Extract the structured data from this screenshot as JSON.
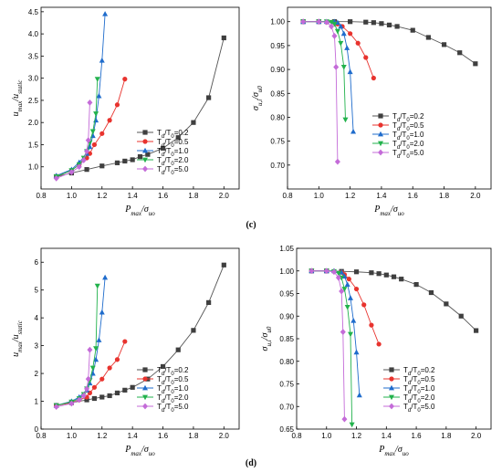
{
  "panel_labels": [
    {
      "text": "(c)",
      "x": 275,
      "y": 249
    },
    {
      "text": "(d)",
      "x": 275,
      "y": 510
    }
  ],
  "chart_data": [
    {
      "type": "line",
      "xlim": [
        0.8,
        2.1
      ],
      "ylim": [
        0.5,
        4.6
      ],
      "xticks": [
        0.8,
        1.0,
        1.2,
        1.4,
        1.6,
        1.8,
        2.0
      ],
      "yticks": [
        1.0,
        1.5,
        2.0,
        2.5,
        3.0,
        3.5,
        4.0,
        4.5
      ],
      "xtick_labels": [
        "0.8",
        "1.0",
        "1.2",
        "1.4",
        "1.6",
        "1.8",
        "2.0"
      ],
      "ytick_labels": [
        "1.0",
        "1.5",
        "2.0",
        "2.5",
        "3.0",
        "3.5",
        "4.0",
        "4.5"
      ],
      "xlabel": "Pmax/σuo",
      "ylabel": "umax/ustatic",
      "legend_position": "middle-right",
      "series": [
        {
          "name": "Td/T0=0.2",
          "color": "#3f3f3f",
          "marker": "square",
          "x": [
            0.9,
            1.0,
            1.1,
            1.2,
            1.3,
            1.35,
            1.4,
            1.45,
            1.5,
            1.6,
            1.7,
            1.8,
            1.9,
            2.0
          ],
          "y": [
            0.78,
            0.86,
            0.94,
            1.02,
            1.09,
            1.13,
            1.16,
            1.23,
            1.28,
            1.42,
            1.66,
            2.0,
            2.56,
            3.91
          ]
        },
        {
          "name": "Td/T0=0.5",
          "color": "#e8332e",
          "marker": "circle",
          "x": [
            0.9,
            1.0,
            1.05,
            1.1,
            1.12,
            1.15,
            1.2,
            1.25,
            1.3,
            1.35
          ],
          "y": [
            0.78,
            0.92,
            1.05,
            1.2,
            1.3,
            1.5,
            1.75,
            2.05,
            2.4,
            2.98
          ]
        },
        {
          "name": "Td/T0=1.0",
          "color": "#1f6ccc",
          "marker": "triangle-up",
          "x": [
            0.9,
            1.0,
            1.05,
            1.1,
            1.12,
            1.14,
            1.16,
            1.18,
            1.2,
            1.22
          ],
          "y": [
            0.8,
            0.94,
            1.1,
            1.3,
            1.45,
            1.7,
            2.05,
            2.6,
            3.4,
            4.45
          ]
        },
        {
          "name": "Td/T0=2.0",
          "color": "#22b24c",
          "marker": "triangle-down",
          "x": [
            0.9,
            1.0,
            1.05,
            1.08,
            1.1,
            1.12,
            1.14,
            1.16,
            1.17
          ],
          "y": [
            0.78,
            0.92,
            1.05,
            1.2,
            1.35,
            1.55,
            1.8,
            2.2,
            2.98
          ]
        },
        {
          "name": "Td/T0=5.0",
          "color": "#c46bd8",
          "marker": "diamond",
          "x": [
            0.9,
            1.0,
            1.05,
            1.08,
            1.1,
            1.11,
            1.12
          ],
          "y": [
            0.74,
            0.88,
            1.0,
            1.15,
            1.35,
            1.6,
            2.45
          ]
        }
      ]
    },
    {
      "type": "line",
      "xlim": [
        0.8,
        2.1
      ],
      "ylim": [
        0.65,
        1.03
      ],
      "xticks": [
        0.8,
        1.0,
        1.2,
        1.4,
        1.6,
        1.8,
        2.0
      ],
      "yticks": [
        0.7,
        0.75,
        0.8,
        0.85,
        0.9,
        0.95,
        1.0
      ],
      "xtick_labels": [
        "0.8",
        "1.0",
        "1.2",
        "1.4",
        "1.6",
        "1.8",
        "2.0"
      ],
      "ytick_labels": [
        "0.70",
        "0.75",
        "0.80",
        "0.85",
        "0.90",
        "0.95",
        "1.00"
      ],
      "xlabel": "Pmax/σuo",
      "ylabel": "σu,i/σu0",
      "legend_position": "lower-right",
      "series": [
        {
          "name": "Td/T0=0.2",
          "color": "#3f3f3f",
          "marker": "square",
          "x": [
            0.9,
            1.0,
            1.1,
            1.2,
            1.3,
            1.35,
            1.4,
            1.45,
            1.5,
            1.6,
            1.7,
            1.8,
            1.9,
            2.0
          ],
          "y": [
            1.0,
            1.0,
            1.0,
            1.0,
            0.999,
            0.998,
            0.996,
            0.993,
            0.99,
            0.982,
            0.967,
            0.952,
            0.935,
            0.912
          ]
        },
        {
          "name": "Td/T0=0.5",
          "color": "#e8332e",
          "marker": "circle",
          "x": [
            0.9,
            1.0,
            1.05,
            1.1,
            1.12,
            1.15,
            1.2,
            1.25,
            1.3,
            1.35
          ],
          "y": [
            1.0,
            1.0,
            0.999,
            0.998,
            0.995,
            0.99,
            0.975,
            0.955,
            0.925,
            0.882
          ]
        },
        {
          "name": "Td/T0=1.0",
          "color": "#1f6ccc",
          "marker": "triangle-up",
          "x": [
            0.9,
            1.0,
            1.05,
            1.1,
            1.12,
            1.14,
            1.16,
            1.18,
            1.2,
            1.22
          ],
          "y": [
            1.0,
            1.0,
            1.0,
            1.0,
            0.998,
            0.99,
            0.975,
            0.945,
            0.895,
            0.77
          ]
        },
        {
          "name": "Td/T0=2.0",
          "color": "#22b24c",
          "marker": "triangle-down",
          "x": [
            0.9,
            1.0,
            1.05,
            1.08,
            1.1,
            1.12,
            1.14,
            1.16,
            1.17
          ],
          "y": [
            1.0,
            1.0,
            1.0,
            0.999,
            0.995,
            0.98,
            0.955,
            0.905,
            0.795
          ]
        },
        {
          "name": "Td/T0=5.0",
          "color": "#c46bd8",
          "marker": "diamond",
          "x": [
            0.9,
            1.0,
            1.05,
            1.08,
            1.1,
            1.11,
            1.12
          ],
          "y": [
            1.0,
            1.0,
            0.999,
            0.99,
            0.97,
            0.905,
            0.707
          ]
        }
      ]
    },
    {
      "type": "line",
      "xlim": [
        0.8,
        2.1
      ],
      "ylim": [
        0.0,
        6.5
      ],
      "xticks": [
        0.8,
        1.0,
        1.2,
        1.4,
        1.6,
        1.8,
        2.0
      ],
      "yticks": [
        0,
        1,
        2,
        3,
        4,
        5,
        6
      ],
      "xtick_labels": [
        "0.8",
        "1.0",
        "1.2",
        "1.4",
        "1.6",
        "1.8",
        "2.0"
      ],
      "ytick_labels": [
        "0",
        "1",
        "2",
        "3",
        "4",
        "5",
        "6"
      ],
      "xlabel": "Pmax/σuo",
      "ylabel": "umax/ustatic",
      "legend_position": "lower-right",
      "series": [
        {
          "name": "Td/T0=0.2",
          "color": "#3f3f3f",
          "marker": "square",
          "x": [
            0.9,
            1.0,
            1.1,
            1.15,
            1.2,
            1.25,
            1.3,
            1.35,
            1.4,
            1.5,
            1.6,
            1.7,
            1.8,
            1.9,
            2.0
          ],
          "y": [
            0.85,
            0.95,
            1.05,
            1.1,
            1.15,
            1.2,
            1.3,
            1.4,
            1.5,
            1.8,
            2.25,
            2.85,
            3.55,
            4.55,
            5.9
          ]
        },
        {
          "name": "Td/T0=0.5",
          "color": "#e8332e",
          "marker": "circle",
          "x": [
            0.9,
            1.0,
            1.05,
            1.1,
            1.12,
            1.15,
            1.2,
            1.25,
            1.3,
            1.35
          ],
          "y": [
            0.85,
            0.95,
            1.05,
            1.15,
            1.3,
            1.5,
            1.8,
            2.2,
            2.5,
            3.15
          ]
        },
        {
          "name": "Td/T0=1.0",
          "color": "#1f6ccc",
          "marker": "triangle-up",
          "x": [
            0.9,
            1.0,
            1.05,
            1.1,
            1.12,
            1.14,
            1.16,
            1.18,
            1.2,
            1.22
          ],
          "y": [
            0.85,
            1.0,
            1.15,
            1.4,
            1.65,
            2.0,
            2.5,
            3.2,
            4.2,
            5.45
          ]
        },
        {
          "name": "Td/T0=2.0",
          "color": "#22b24c",
          "marker": "triangle-down",
          "x": [
            0.9,
            1.0,
            1.05,
            1.08,
            1.1,
            1.12,
            1.14,
            1.16,
            1.17
          ],
          "y": [
            0.85,
            0.98,
            1.1,
            1.25,
            1.45,
            1.75,
            2.2,
            2.9,
            5.15
          ]
        },
        {
          "name": "Td/T0=5.0",
          "color": "#c46bd8",
          "marker": "diamond",
          "x": [
            0.9,
            1.0,
            1.05,
            1.08,
            1.1,
            1.11,
            1.12
          ],
          "y": [
            0.8,
            0.92,
            1.05,
            1.2,
            1.45,
            1.8,
            2.85
          ]
        }
      ]
    },
    {
      "type": "line",
      "xlim": [
        0.8,
        2.1
      ],
      "ylim": [
        0.65,
        1.05
      ],
      "xticks": [
        0.8,
        1.0,
        1.2,
        1.4,
        1.6,
        1.8,
        2.0
      ],
      "yticks": [
        0.65,
        0.7,
        0.75,
        0.8,
        0.85,
        0.9,
        0.95,
        1.0,
        1.05
      ],
      "xtick_labels": [
        "0.8",
        "1.0",
        "1.2",
        "1.4",
        "1.6",
        "1.8",
        "2.0"
      ],
      "ytick_labels": [
        "0.65",
        "0.70",
        "0.75",
        "0.80",
        "0.85",
        "0.90",
        "0.95",
        "1.00",
        "1.05"
      ],
      "xlabel": "Pmax/σuo",
      "ylabel": "σu,i/σu0",
      "legend_position": "lower-right",
      "series": [
        {
          "name": "Td/T0=0.2",
          "color": "#3f3f3f",
          "marker": "square",
          "x": [
            0.9,
            1.0,
            1.1,
            1.2,
            1.3,
            1.35,
            1.4,
            1.45,
            1.5,
            1.6,
            1.7,
            1.8,
            1.9,
            2.0
          ],
          "y": [
            1.0,
            1.0,
            0.999,
            0.998,
            0.996,
            0.994,
            0.991,
            0.987,
            0.982,
            0.97,
            0.952,
            0.927,
            0.9,
            0.868
          ]
        },
        {
          "name": "Td/T0=0.5",
          "color": "#e8332e",
          "marker": "circle",
          "x": [
            0.9,
            1.0,
            1.05,
            1.1,
            1.12,
            1.15,
            1.2,
            1.25,
            1.3,
            1.35
          ],
          "y": [
            1.0,
            1.0,
            0.999,
            0.997,
            0.992,
            0.982,
            0.96,
            0.925,
            0.88,
            0.838
          ]
        },
        {
          "name": "Td/T0=1.0",
          "color": "#1f6ccc",
          "marker": "triangle-up",
          "x": [
            0.9,
            1.0,
            1.05,
            1.1,
            1.12,
            1.14,
            1.16,
            1.18,
            1.2,
            1.22
          ],
          "y": [
            1.0,
            1.0,
            1.0,
            0.997,
            0.988,
            0.97,
            0.94,
            0.89,
            0.82,
            0.725
          ]
        },
        {
          "name": "Td/T0=2.0",
          "color": "#22b24c",
          "marker": "triangle-down",
          "x": [
            0.9,
            1.0,
            1.05,
            1.08,
            1.1,
            1.12,
            1.14,
            1.16,
            1.17
          ],
          "y": [
            1.0,
            1.0,
            0.999,
            0.995,
            0.985,
            0.96,
            0.92,
            0.86,
            0.66
          ]
        },
        {
          "name": "Td/T0=5.0",
          "color": "#c46bd8",
          "marker": "diamond",
          "x": [
            0.9,
            1.0,
            1.05,
            1.08,
            1.1,
            1.11,
            1.12
          ],
          "y": [
            1.0,
            1.0,
            0.998,
            0.985,
            0.955,
            0.865,
            0.672
          ]
        }
      ]
    }
  ]
}
